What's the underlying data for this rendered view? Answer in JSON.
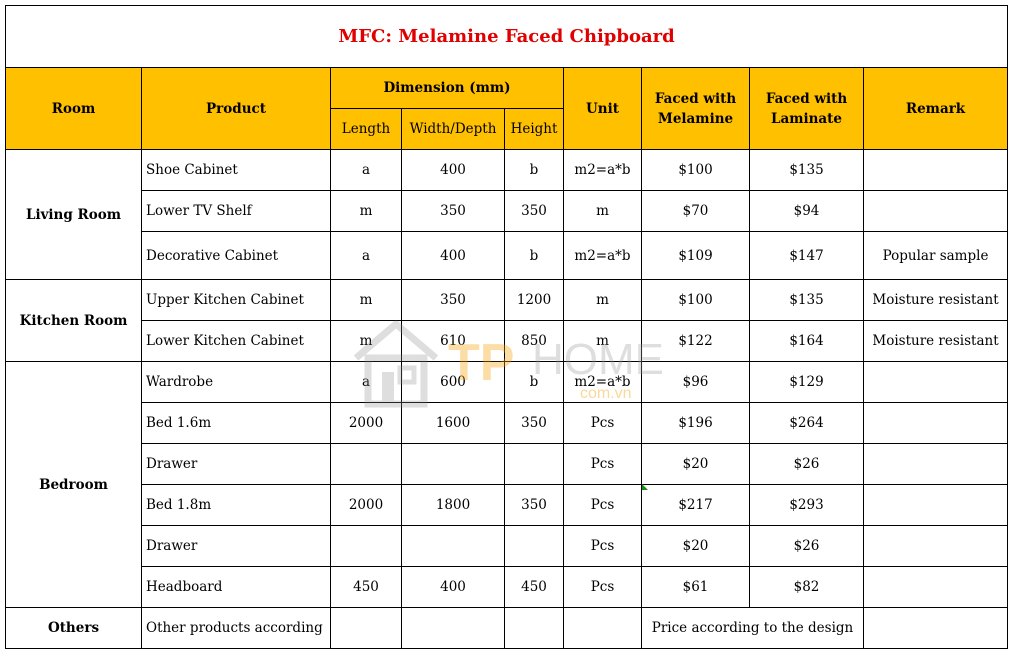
{
  "title": "MFC: Melamine Faced Chipboard",
  "headers": {
    "room": "Room",
    "product": "Product",
    "dimension": "Dimension (mm)",
    "length": "Length",
    "width": "Width/Depth",
    "height": "Height",
    "unit": "Unit",
    "melamine": "Faced with Melamine",
    "laminate": "Faced with Laminate",
    "remark": "Remark"
  },
  "rooms": {
    "living": "Living Room",
    "kitchen": "Kitchen Room",
    "bedroom": "Bedroom",
    "others": "Others"
  },
  "rows": [
    {
      "product": "Shoe Cabinet",
      "length": "a",
      "width": "400",
      "height": "b",
      "unit": "m2=a*b",
      "melamine": "$100",
      "laminate": "$135",
      "remark": ""
    },
    {
      "product": "Lower TV Shelf",
      "length": "m",
      "width": "350",
      "height": "350",
      "unit": "m",
      "melamine": "$70",
      "laminate": "$94",
      "remark": ""
    },
    {
      "product": "Decorative Cabinet",
      "length": "a",
      "width": "400",
      "height": "b",
      "unit": "m2=a*b",
      "melamine": "$109",
      "laminate": "$147",
      "remark": "Popular sample"
    },
    {
      "product": "Upper Kitchen Cabinet",
      "length": "m",
      "width": "350",
      "height": "1200",
      "unit": "m",
      "melamine": "$100",
      "laminate": "$135",
      "remark": "Moisture resistant"
    },
    {
      "product": "Lower Kitchen Cabinet",
      "length": "m",
      "width": "610",
      "height": "850",
      "unit": "m",
      "melamine": "$122",
      "laminate": "$164",
      "remark": "Moisture resistant"
    },
    {
      "product": "Wardrobe",
      "length": "a",
      "width": "600",
      "height": "b",
      "unit": "m2=a*b",
      "melamine": "$96",
      "laminate": "$129",
      "remark": ""
    },
    {
      "product": "Bed 1.6m",
      "length": "2000",
      "width": "1600",
      "height": "350",
      "unit": "Pcs",
      "melamine": "$196",
      "laminate": "$264",
      "remark": ""
    },
    {
      "product": "Drawer",
      "length": "",
      "width": "",
      "height": "",
      "unit": "Pcs",
      "melamine": "$20",
      "laminate": "$26",
      "remark": ""
    },
    {
      "product": "Bed 1.8m",
      "length": "2000",
      "width": "1800",
      "height": "350",
      "unit": "Pcs",
      "melamine": "$217",
      "laminate": "$293",
      "remark": ""
    },
    {
      "product": "Drawer",
      "length": "",
      "width": "",
      "height": "",
      "unit": "Pcs",
      "melamine": "$20",
      "laminate": "$26",
      "remark": ""
    },
    {
      "product": "Headboard",
      "length": "450",
      "width": "400",
      "height": "450",
      "unit": "Pcs",
      "melamine": "$61",
      "laminate": "$82",
      "remark": ""
    }
  ],
  "others": {
    "product": "Other products according",
    "price": "Price according to the design"
  },
  "watermark": {
    "brand_tp": "TP",
    "brand_home": "HOME",
    "domain": "com.vn"
  },
  "colors": {
    "header_bg": "#ffc000",
    "title_red": "#e00000"
  }
}
